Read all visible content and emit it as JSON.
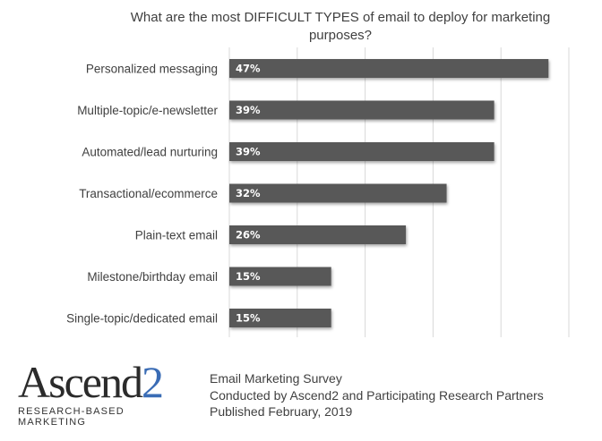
{
  "chart_data": {
    "type": "bar",
    "orientation": "horizontal",
    "title": "What are the most DIFFICULT TYPES of email to deploy for marketing purposes?",
    "title_lines": [
      "What are the most DIFFICULT TYPES of email to deploy for marketing",
      "purposes?"
    ],
    "categories": [
      "Personalized messaging",
      "Multiple-topic/e-newsletter",
      "Automated/lead nurturing",
      "Transactional/ecommerce",
      "Plain-text email",
      "Milestone/birthday email",
      "Single-topic/dedicated email"
    ],
    "values": [
      47,
      39,
      39,
      32,
      26,
      15,
      15
    ],
    "data_labels": [
      "47%",
      "39%",
      "39%",
      "32%",
      "26%",
      "15%",
      "15%"
    ],
    "xlim": [
      0,
      50
    ],
    "grid": true,
    "grid_step": 10,
    "bar_color": "#595959",
    "xlabel": "",
    "ylabel": ""
  },
  "footer": {
    "logo_word": "Ascend",
    "logo_digit": "2",
    "logo_tagline": "RESEARCH-BASED MARKETING",
    "logo_color": "#3a6cb5",
    "lines": [
      "Email Marketing Survey",
      "Conducted by Ascend2 and Participating Research Partners",
      "Published February, 2019"
    ]
  }
}
